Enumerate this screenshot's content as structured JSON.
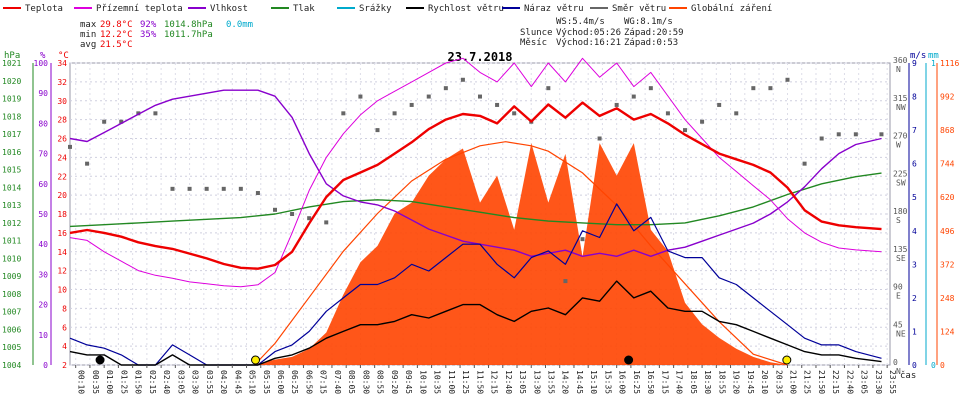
{
  "legend": [
    {
      "label": "Teplota",
      "color": "#ee0000"
    },
    {
      "label": "Přízemní teplota",
      "color": "#dd00dd"
    },
    {
      "label": "Vlhkost",
      "color": "#8800cc"
    },
    {
      "label": "Tlak",
      "color": "#228822"
    },
    {
      "label": "Srážky",
      "color": "#00aacc"
    },
    {
      "label": "Rychlost větru",
      "color": "#000000"
    },
    {
      "label": "Náraz větru",
      "color": "#000099"
    },
    {
      "label": "Směr větru",
      "color": "#666666"
    },
    {
      "label": "Globální záření",
      "color": "#ff4400"
    }
  ],
  "stats": {
    "max": {
      "label": "max",
      "temp": "29.8°C",
      "hum": "92%",
      "press": "1014.8hPa",
      "rain": "0.0mm"
    },
    "min": {
      "label": "min",
      "temp": "12.2°C",
      "hum": "35%",
      "press": "1011.7hPa"
    },
    "avg": {
      "label": "avg",
      "temp": "21.5°C"
    },
    "ws": "WS:5.4m/s",
    "wg": "WG:8.1m/s",
    "sun": {
      "label": "Slunce",
      "rise": "Východ:05:26",
      "set": "Západ:20:59"
    },
    "moon": {
      "label": "Měsíc",
      "rise": "Východ:16:21",
      "set": "Západ:0:53"
    }
  },
  "chart_data": {
    "type": "line",
    "title": "23.7.2018",
    "xlabel": "čas",
    "x_ticks": [
      "00:10",
      "00:35",
      "01:00",
      "01:25",
      "01:50",
      "02:15",
      "02:40",
      "03:05",
      "03:30",
      "03:55",
      "04:20",
      "04:45",
      "05:10",
      "05:35",
      "06:00",
      "06:25",
      "06:50",
      "07:15",
      "07:40",
      "08:05",
      "08:30",
      "08:55",
      "09:20",
      "09:45",
      "10:10",
      "10:35",
      "11:00",
      "11:25",
      "11:50",
      "12:15",
      "12:40",
      "13:05",
      "13:30",
      "13:55",
      "14:20",
      "14:45",
      "15:10",
      "15:35",
      "16:00",
      "16:25",
      "16:50",
      "17:15",
      "17:40",
      "18:05",
      "18:30",
      "18:55",
      "19:20",
      "19:45",
      "20:10",
      "20:35",
      "21:00",
      "21:25",
      "21:50",
      "22:15",
      "22:40",
      "23:05",
      "23:30",
      "23:55"
    ],
    "axes": {
      "pressure": {
        "unit": "hPa",
        "ticks": [
          "1021",
          "1020",
          "1019",
          "1018",
          "1017",
          "1016",
          "1015",
          "1014",
          "1013",
          "1012",
          "1011",
          "1010",
          "1009",
          "1008",
          "1007",
          "1006",
          "1005",
          "1004"
        ],
        "range": [
          1004,
          1021
        ]
      },
      "humidity": {
        "unit": "%",
        "ticks": [
          "100",
          "90",
          "80",
          "70",
          "60",
          "50",
          "40",
          "30",
          "20",
          "10",
          "0"
        ],
        "range": [
          0,
          100
        ]
      },
      "temperature": {
        "unit": "°C",
        "ticks": [
          "34",
          "32",
          "30",
          "28",
          "26",
          "24",
          "22",
          "20",
          "18",
          "16",
          "14",
          "12",
          "10",
          "8",
          "6",
          "4",
          "2"
        ],
        "range": [
          2,
          34
        ]
      },
      "wind_dir": {
        "ticks": [
          {
            "deg": "360",
            "dir": "N"
          },
          {
            "deg": "315",
            "dir": "NW"
          },
          {
            "deg": "270",
            "dir": "W"
          },
          {
            "deg": "225",
            "dir": "SW"
          },
          {
            "deg": "180",
            "dir": "S"
          },
          {
            "deg": "135",
            "dir": "SE"
          },
          {
            "deg": "90",
            "dir": "E"
          },
          {
            "deg": "45",
            "dir": "NE"
          },
          {
            "deg": "0",
            "dir": "N"
          }
        ],
        "range": [
          0,
          360
        ]
      },
      "wind_speed": {
        "unit": "m/s",
        "ticks": [
          "9",
          "8",
          "7",
          "6",
          "5",
          "4",
          "3",
          "2",
          "1",
          "0"
        ],
        "range": [
          0,
          9
        ]
      },
      "rain": {
        "unit": "mm",
        "ticks": [
          "1",
          "0"
        ],
        "range": [
          0,
          1
        ]
      },
      "radiation": {
        "ticks": [
          "1116",
          "992",
          "868",
          "744",
          "620",
          "496",
          "372",
          "248",
          "124",
          "0"
        ],
        "range": [
          0,
          1116
        ]
      }
    },
    "series": [
      {
        "name": "Teplota",
        "color": "#ee0000",
        "axis": "temperature",
        "x": [
          0,
          0.5,
          1,
          1.5,
          2,
          2.5,
          3,
          3.5,
          4,
          4.5,
          5,
          5.5,
          6,
          6.5,
          7,
          7.5,
          8,
          8.5,
          9,
          9.5,
          10,
          10.5,
          11,
          11.5,
          12,
          12.5,
          13,
          13.5,
          14,
          14.5,
          15,
          15.5,
          16,
          16.5,
          17,
          17.5,
          18,
          18.5,
          19,
          19.5,
          20,
          20.5,
          21,
          21.5,
          22,
          22.5,
          23,
          23.75
        ],
        "y": [
          16.0,
          16.3,
          16.0,
          15.6,
          15.0,
          14.6,
          14.3,
          13.8,
          13.3,
          12.7,
          12.3,
          12.2,
          12.6,
          14.0,
          17.0,
          19.8,
          21.6,
          22.4,
          23.2,
          24.4,
          25.6,
          27.0,
          28.0,
          28.6,
          28.4,
          27.6,
          29.4,
          27.8,
          29.6,
          28.2,
          29.8,
          28.4,
          29.2,
          28.0,
          28.6,
          27.6,
          26.4,
          25.4,
          24.4,
          23.8,
          23.2,
          22.4,
          20.8,
          18.4,
          17.2,
          16.8,
          16.6,
          16.4
        ]
      },
      {
        "name": "Přízemní teplota",
        "color": "#dd00dd",
        "axis": "temperature",
        "x": [
          0,
          0.5,
          1,
          1.5,
          2,
          2.5,
          3,
          3.5,
          4,
          4.5,
          5,
          5.5,
          6,
          6.5,
          7,
          7.5,
          8,
          8.5,
          9,
          9.5,
          10,
          10.5,
          11,
          11.5,
          12,
          12.5,
          13,
          13.5,
          14,
          14.5,
          15,
          15.5,
          16,
          16.5,
          17,
          17.5,
          18,
          18.5,
          19,
          19.5,
          20,
          20.5,
          21,
          21.5,
          22,
          22.5,
          23,
          23.75
        ],
        "y": [
          15.5,
          15.2,
          14.0,
          13.0,
          12.0,
          11.5,
          11.2,
          10.8,
          10.6,
          10.4,
          10.3,
          10.5,
          11.8,
          16.0,
          20.5,
          24.0,
          26.5,
          28.5,
          30.0,
          31.0,
          32.0,
          33.0,
          34.0,
          34.5,
          33.0,
          32.0,
          34.0,
          31.5,
          34.0,
          32.0,
          34.5,
          32.5,
          34.0,
          31.5,
          33.0,
          30.5,
          28.0,
          26.0,
          24.0,
          22.5,
          21.0,
          19.5,
          17.5,
          16.0,
          15.0,
          14.4,
          14.2,
          14.0
        ]
      },
      {
        "name": "Vlhkost",
        "color": "#8800cc",
        "axis": "humidity",
        "x": [
          0,
          0.5,
          1,
          1.5,
          2,
          2.5,
          3,
          3.5,
          4,
          4.5,
          5,
          5.5,
          6,
          6.5,
          7,
          7.5,
          8,
          8.5,
          9,
          9.5,
          10,
          10.5,
          11,
          11.5,
          12,
          12.5,
          13,
          13.5,
          14,
          14.5,
          15,
          15.5,
          16,
          16.5,
          17,
          17.5,
          18,
          18.5,
          19,
          19.5,
          20,
          20.5,
          21,
          21.5,
          22,
          22.5,
          23,
          23.75
        ],
        "y": [
          75,
          74,
          77,
          80,
          83,
          86,
          88,
          89,
          90,
          91,
          91,
          91,
          89,
          82,
          70,
          60,
          56,
          54,
          53,
          51,
          48,
          45,
          43,
          41,
          40,
          39,
          38,
          36,
          37,
          38,
          36,
          37,
          36,
          38,
          36,
          38,
          39,
          41,
          43,
          45,
          47,
          50,
          54,
          59,
          65,
          70,
          73,
          75
        ]
      },
      {
        "name": "Tlak",
        "color": "#228822",
        "axis": "pressure",
        "x": [
          0,
          1,
          2,
          3,
          4,
          5,
          6,
          7,
          8,
          9,
          10,
          11,
          12,
          13,
          14,
          15,
          16,
          17,
          18,
          19,
          20,
          21,
          22,
          23,
          23.75
        ],
        "y": [
          1011.8,
          1011.9,
          1012.0,
          1012.1,
          1012.2,
          1012.3,
          1012.5,
          1012.9,
          1013.2,
          1013.3,
          1013.2,
          1012.9,
          1012.6,
          1012.3,
          1012.1,
          1012.0,
          1011.9,
          1011.9,
          1012.0,
          1012.4,
          1012.9,
          1013.6,
          1014.2,
          1014.6,
          1014.8
        ]
      },
      {
        "name": "Rychlost větru",
        "color": "#000000",
        "axis": "wind_speed",
        "x": [
          0,
          0.5,
          1,
          1.5,
          2,
          2.5,
          3,
          3.5,
          4,
          4.5,
          5,
          5.5,
          6,
          6.5,
          7,
          7.5,
          8,
          8.5,
          9,
          9.5,
          10,
          10.5,
          11,
          11.5,
          12,
          12.5,
          13,
          13.5,
          14,
          14.5,
          15,
          15.5,
          16,
          16.5,
          17,
          17.5,
          18,
          18.5,
          19,
          19.5,
          20,
          20.5,
          21,
          21.5,
          22,
          22.5,
          23,
          23.75
        ],
        "y": [
          0.4,
          0.3,
          0.3,
          0,
          0,
          0,
          0.3,
          0,
          0,
          0,
          0,
          0,
          0.2,
          0.3,
          0.5,
          0.8,
          1.0,
          1.2,
          1.2,
          1.3,
          1.5,
          1.4,
          1.6,
          1.8,
          1.8,
          1.5,
          1.3,
          1.6,
          1.7,
          1.5,
          2.0,
          1.9,
          2.5,
          2.0,
          2.2,
          1.7,
          1.6,
          1.6,
          1.3,
          1.2,
          1.0,
          0.8,
          0.6,
          0.4,
          0.3,
          0.3,
          0.2,
          0.1
        ]
      },
      {
        "name": "Náraz větru",
        "color": "#000099",
        "axis": "wind_speed",
        "x": [
          0,
          0.5,
          1,
          1.5,
          2,
          2.5,
          3,
          3.5,
          4,
          4.5,
          5,
          5.5,
          6,
          6.5,
          7,
          7.5,
          8,
          8.5,
          9,
          9.5,
          10,
          10.5,
          11,
          11.5,
          12,
          12.5,
          13,
          13.5,
          14,
          14.5,
          15,
          15.5,
          16,
          16.5,
          17,
          17.5,
          18,
          18.5,
          19,
          19.5,
          20,
          20.5,
          21,
          21.5,
          22,
          22.5,
          23,
          23.75
        ],
        "y": [
          0.8,
          0.6,
          0.5,
          0.3,
          0,
          0,
          0.6,
          0.3,
          0,
          0,
          0,
          0,
          0.4,
          0.6,
          1.0,
          1.6,
          2.0,
          2.4,
          2.4,
          2.6,
          3.0,
          2.8,
          3.2,
          3.6,
          3.6,
          3.0,
          2.6,
          3.2,
          3.4,
          3.0,
          4.0,
          3.8,
          4.8,
          4.0,
          4.4,
          3.4,
          3.2,
          3.2,
          2.6,
          2.4,
          2.0,
          1.6,
          1.2,
          0.8,
          0.6,
          0.6,
          0.4,
          0.2
        ]
      },
      {
        "name": "Globální záření",
        "color": "#ff4400",
        "axis": "radiation",
        "fill": true,
        "x": [
          5.3,
          6,
          6.5,
          7,
          7.5,
          8,
          8.5,
          9,
          9.5,
          10,
          10.5,
          11,
          11.5,
          12,
          12.5,
          13,
          13.5,
          14,
          14.5,
          15,
          15.5,
          16,
          16.5,
          17,
          17.5,
          18,
          18.5,
          19,
          19.5,
          20,
          20.5,
          21
        ],
        "y": [
          0,
          20,
          30,
          60,
          120,
          260,
          380,
          440,
          560,
          600,
          700,
          760,
          800,
          600,
          700,
          500,
          820,
          600,
          780,
          400,
          820,
          700,
          820,
          500,
          420,
          230,
          150,
          100,
          60,
          30,
          10,
          0
        ]
      },
      {
        "name": "Směr větru",
        "color": "#666666",
        "axis": "wind_dir",
        "markers_only": true,
        "x": [
          0,
          0.5,
          1,
          1.5,
          2,
          2.5,
          3,
          3.5,
          4,
          4.5,
          5,
          5.5,
          6,
          6.5,
          7,
          7.5,
          8,
          8.5,
          9,
          9.5,
          10,
          10.5,
          11,
          11.5,
          12,
          12.5,
          13,
          13.5,
          14,
          14.5,
          15,
          15.5,
          16,
          16.5,
          17,
          17.5,
          18,
          18.5,
          19,
          19.5,
          20,
          20.5,
          21,
          21.5,
          22,
          22.5,
          23,
          23.75
        ],
        "y": [
          260,
          240,
          290,
          290,
          300,
          300,
          210,
          210,
          210,
          210,
          210,
          205,
          185,
          180,
          175,
          170,
          300,
          320,
          280,
          300,
          310,
          320,
          330,
          340,
          320,
          310,
          300,
          290,
          330,
          100,
          150,
          270,
          310,
          320,
          330,
          300,
          280,
          290,
          310,
          300,
          330,
          330,
          340,
          240,
          270,
          275,
          275,
          275
        ]
      }
    ],
    "clear_sky_radiation": {
      "x": [
        5.4,
        6,
        7,
        8,
        9,
        10,
        11,
        12,
        12.75,
        13.5,
        14,
        15,
        16,
        17,
        18,
        19,
        20,
        21
      ],
      "y": [
        0,
        80,
        250,
        420,
        560,
        680,
        760,
        810,
        825,
        810,
        790,
        710,
        590,
        440,
        300,
        160,
        40,
        0
      ]
    },
    "markers": [
      {
        "name": "sunrise",
        "x": 5.43,
        "color": "#ffee00"
      },
      {
        "name": "sunset",
        "x": 20.98,
        "color": "#ffee00"
      },
      {
        "name": "moonrise",
        "x": 16.35,
        "color": "#000000"
      },
      {
        "name": "moonset",
        "x": 0.88,
        "color": "#000000"
      }
    ]
  }
}
